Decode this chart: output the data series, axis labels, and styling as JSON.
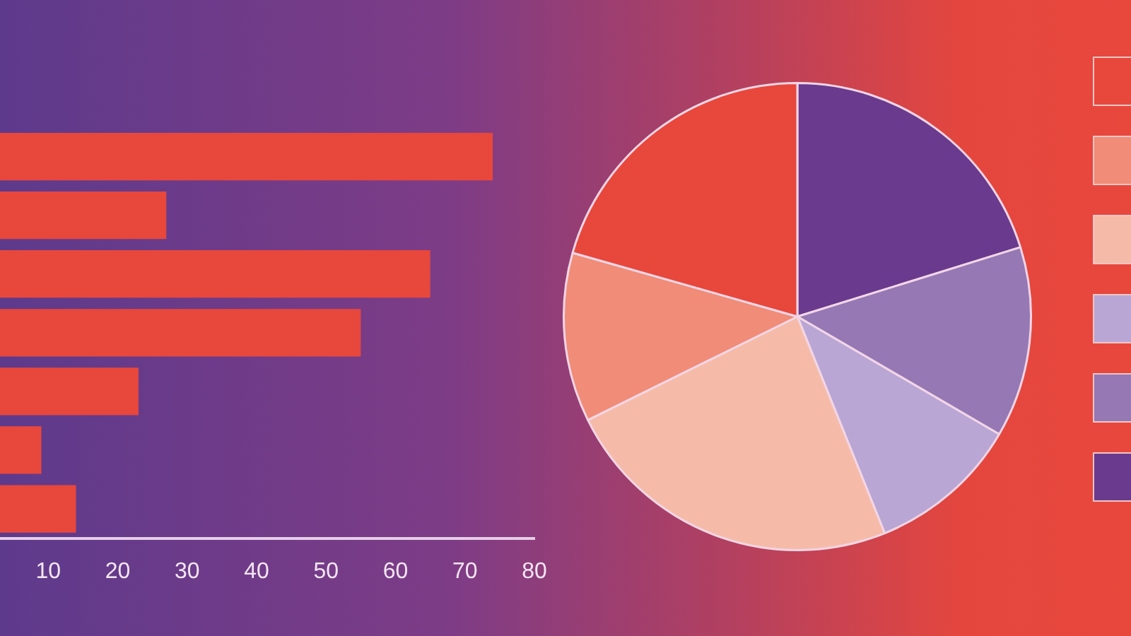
{
  "chart_data": [
    {
      "type": "bar",
      "orientation": "horizontal",
      "categories": [
        null,
        null,
        null,
        null,
        null,
        null,
        null
      ],
      "values": [
        74,
        27,
        65,
        55,
        23,
        9,
        14
      ],
      "color": "#e8473c",
      "xlim": [
        0,
        80
      ],
      "xticks": [
        10,
        20,
        30,
        40,
        50,
        60,
        70,
        80
      ],
      "grid": false,
      "tick_labels": "x"
    },
    {
      "type": "pie",
      "categories": [
        null,
        null,
        null,
        null,
        null,
        null
      ],
      "values": [
        20.2,
        13.2,
        10.5,
        23.8,
        11.7,
        20.6
      ],
      "colors": [
        "#6a3a8e",
        "#9578b4",
        "#b9a6d4",
        "#f6bba8",
        "#f08c78",
        "#e8473c"
      ]
    }
  ]
}
